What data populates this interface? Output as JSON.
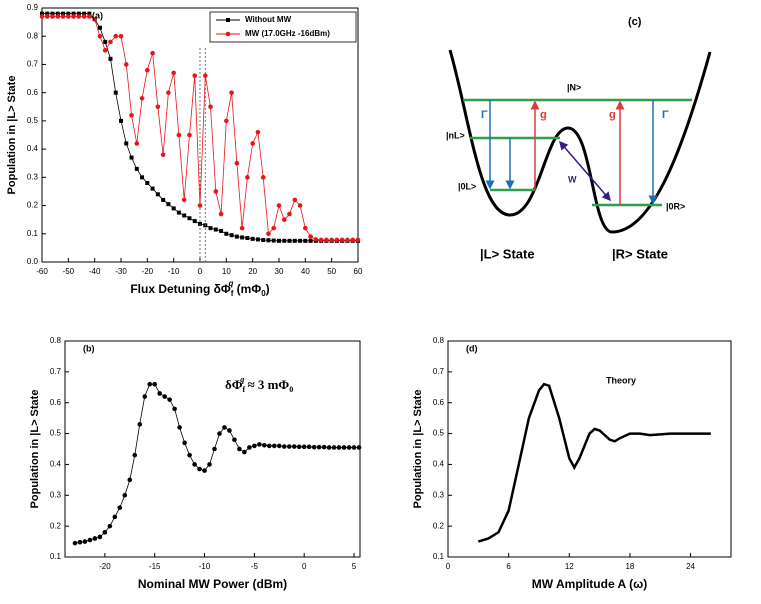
{
  "chart_data": [
    {
      "type": "line",
      "annotation": "(a)",
      "x_label": [
        "Flux Detuning  δΦ",
        "f",
        "q",
        " (mΦ",
        "0",
        ")"
      ],
      "y_label": "Population in |L> State",
      "xlim": [
        -60,
        60
      ],
      "xticks": [
        -60,
        -50,
        -40,
        -30,
        -20,
        -10,
        0,
        10,
        20,
        30,
        40,
        50,
        60
      ],
      "ylim": [
        0,
        0.9
      ],
      "yticks": [
        {
          "value": 0,
          "label": "0.0"
        },
        0.1,
        0.2,
        0.3,
        0.4,
        0.5,
        0.6,
        0.7,
        0.8,
        0.9
      ],
      "legend": "upper right",
      "grid": false,
      "x": [
        -60,
        -58,
        -56,
        -54,
        -52,
        -50,
        -48,
        -46,
        -44,
        -42,
        -40,
        -38,
        -36,
        -34,
        -32,
        -30,
        -28,
        -26,
        -24,
        -22,
        -20,
        -18,
        -16,
        -14,
        -12,
        -10,
        -8,
        -6,
        -4,
        -2,
        0,
        2,
        4,
        6,
        8,
        10,
        12,
        14,
        16,
        18,
        20,
        22,
        24,
        26,
        28,
        30,
        32,
        34,
        36,
        38,
        40,
        42,
        44,
        46,
        48,
        50,
        52,
        54,
        56,
        58,
        60
      ],
      "series": [
        {
          "name": "Without MW",
          "color": "#000000",
          "marker": "square",
          "values": [
            0.88,
            0.88,
            0.88,
            0.88,
            0.88,
            0.88,
            0.88,
            0.88,
            0.88,
            0.88,
            0.86,
            0.83,
            0.78,
            0.72,
            0.6,
            0.5,
            0.42,
            0.37,
            0.33,
            0.3,
            0.28,
            0.26,
            0.24,
            0.22,
            0.205,
            0.19,
            0.175,
            0.165,
            0.155,
            0.145,
            0.135,
            0.13,
            0.12,
            0.115,
            0.11,
            0.1,
            0.095,
            0.09,
            0.087,
            0.085,
            0.082,
            0.08,
            0.078,
            0.077,
            0.076,
            0.075,
            0.075,
            0.075,
            0.075,
            0.075,
            0.075,
            0.075,
            0.075,
            0.075,
            0.075,
            0.075,
            0.075,
            0.075,
            0.075,
            0.075,
            0.075
          ]
        },
        {
          "name": "MW (17.0GHz -16dBm)",
          "color": "#e8161b",
          "marker": "circle",
          "values": [
            0.87,
            0.87,
            0.87,
            0.87,
            0.87,
            0.87,
            0.87,
            0.87,
            0.87,
            0.87,
            0.86,
            0.8,
            0.75,
            0.78,
            0.8,
            0.8,
            0.7,
            0.52,
            0.42,
            0.58,
            0.68,
            0.74,
            0.55,
            0.38,
            0.6,
            0.67,
            0.45,
            0.22,
            0.45,
            0.66,
            0.2,
            0.66,
            0.55,
            0.25,
            0.17,
            0.5,
            0.6,
            0.35,
            0.12,
            0.3,
            0.42,
            0.46,
            0.3,
            0.1,
            0.12,
            0.2,
            0.15,
            0.17,
            0.22,
            0.2,
            0.12,
            0.09,
            0.08,
            0.078,
            0.078,
            0.078,
            0.078,
            0.078,
            0.078,
            0.078,
            0.078
          ]
        }
      ]
    },
    {
      "type": "line",
      "annotation": "(b)",
      "note": [
        "δΦ",
        "f",
        "q",
        " ≈ 3 mΦ",
        "0"
      ],
      "x_label": "Nominal MW Power (dBm)",
      "y_label": "Population in |L> State",
      "xlim": [
        -24,
        5.6
      ],
      "xticks": [
        -20,
        -15,
        -10,
        -5,
        0,
        5
      ],
      "ylim": [
        0.1,
        0.8
      ],
      "yticks": [
        0.1,
        0.2,
        0.3,
        0.4,
        0.5,
        0.6,
        0.7,
        0.8
      ],
      "grid": false,
      "x": [
        -23,
        -22.5,
        -22,
        -21.5,
        -21,
        -20.5,
        -20,
        -19.5,
        -19,
        -18.5,
        -18,
        -17.5,
        -17,
        -16.5,
        -16,
        -15.5,
        -15,
        -14.5,
        -14,
        -13.5,
        -13,
        -12.5,
        -12,
        -11.5,
        -11,
        -10.5,
        -10,
        -9.5,
        -9,
        -8.5,
        -8,
        -7.5,
        -7,
        -6.5,
        -6,
        -5.5,
        -5,
        -4.5,
        -4,
        -3.5,
        -3,
        -2.5,
        -2,
        -1.5,
        -1,
        -0.5,
        0,
        0.5,
        1,
        1.5,
        2,
        2.5,
        3,
        3.5,
        4,
        4.5,
        5,
        5.5
      ],
      "series": [
        {
          "color": "#000000",
          "marker": "circle",
          "values": [
            0.145,
            0.148,
            0.15,
            0.155,
            0.16,
            0.165,
            0.18,
            0.2,
            0.23,
            0.26,
            0.3,
            0.35,
            0.43,
            0.53,
            0.62,
            0.66,
            0.66,
            0.63,
            0.62,
            0.61,
            0.58,
            0.52,
            0.47,
            0.43,
            0.4,
            0.385,
            0.38,
            0.4,
            0.45,
            0.5,
            0.52,
            0.51,
            0.48,
            0.45,
            0.44,
            0.455,
            0.46,
            0.465,
            0.462,
            0.46,
            0.46,
            0.46,
            0.458,
            0.458,
            0.458,
            0.457,
            0.457,
            0.457,
            0.456,
            0.456,
            0.456,
            0.455,
            0.455,
            0.455,
            0.455,
            0.455,
            0.455,
            0.455
          ]
        }
      ]
    },
    {
      "type": "line",
      "annotation": "(d)",
      "note": "Theory",
      "x_label": "MW Amplitude  A  (ω)",
      "y_label": "Population in |L> State",
      "xlim": [
        0,
        28
      ],
      "xticks": [
        0,
        6,
        12,
        18,
        24
      ],
      "ylim": [
        0.1,
        0.8
      ],
      "yticks": [
        0.1,
        0.2,
        0.3,
        0.4,
        0.5,
        0.6,
        0.7,
        0.8
      ],
      "grid": false,
      "x": [
        3,
        4,
        5,
        6,
        7,
        8,
        9,
        9.5,
        10,
        11,
        12,
        12.5,
        13,
        14,
        14.5,
        15,
        16,
        16.5,
        17,
        18,
        19,
        20,
        22,
        24,
        26
      ],
      "series": [
        {
          "color": "#000000",
          "marker": "none",
          "values": [
            0.15,
            0.16,
            0.18,
            0.25,
            0.4,
            0.55,
            0.64,
            0.66,
            0.655,
            0.55,
            0.42,
            0.39,
            0.42,
            0.5,
            0.515,
            0.51,
            0.48,
            0.475,
            0.485,
            0.5,
            0.5,
            0.495,
            0.5,
            0.5,
            0.5
          ]
        }
      ]
    }
  ],
  "diagram": {
    "label": "(c)",
    "levels": [
      "|N>",
      "|nL>",
      "|0L>",
      "|0R>"
    ],
    "rates": [
      "Γ",
      "g",
      "g",
      "Γ",
      "W"
    ],
    "states": [
      "|L> State",
      "|R> State"
    ]
  }
}
